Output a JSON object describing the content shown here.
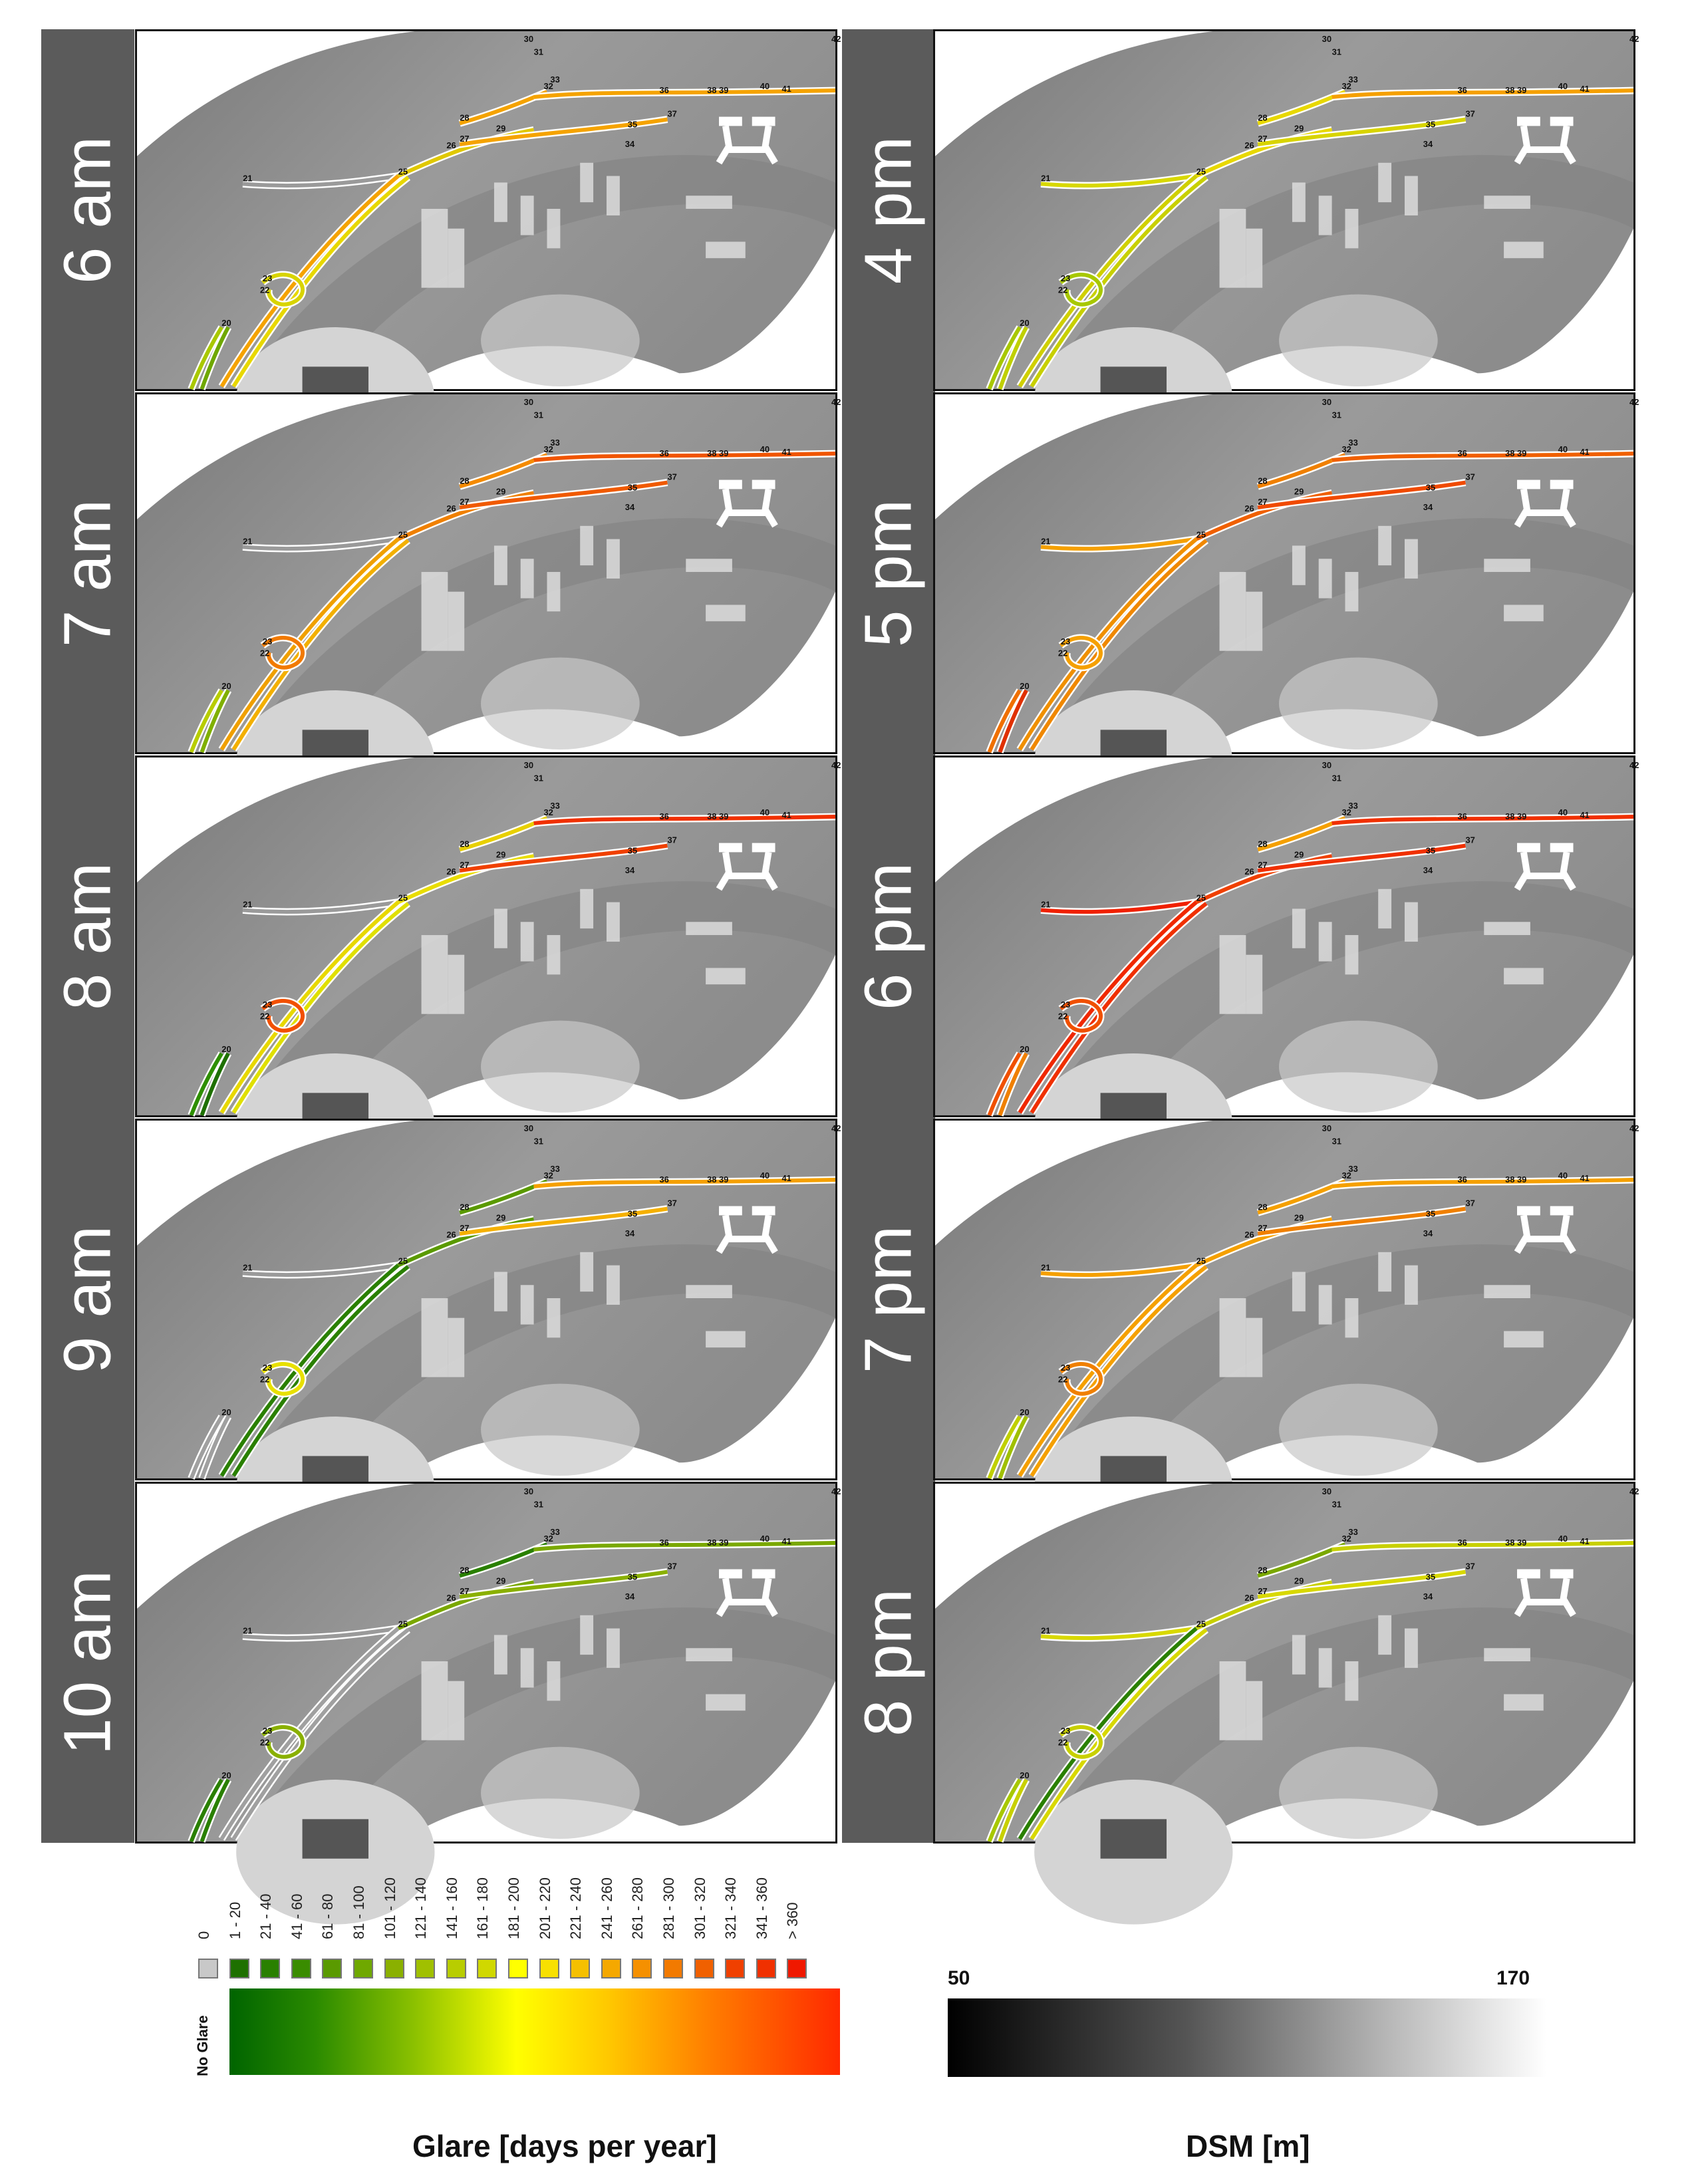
{
  "panels": [
    {
      "time": "6 am",
      "colors": {
        "a": "#9a9a9a",
        "b": "#f5a300",
        "c": "#f5a300",
        "d": "#e0c800",
        "e": "#f5a300",
        "f": "#f5a300",
        "g": "#e8d800",
        "h": "#a9c800",
        "i": "#6fa800",
        "loop": "#d8d400"
      }
    },
    {
      "time": "7 am",
      "colors": {
        "a": "#9a9a9a",
        "b": "#f58b00",
        "c": "#f05500",
        "d": "#f08000",
        "e": "#f05a00",
        "f": "#f0a000",
        "g": "#f3b000",
        "h": "#b8cd00",
        "i": "#80b000",
        "loop": "#f27a00"
      }
    },
    {
      "time": "8 am",
      "colors": {
        "a": "#9a9a9a",
        "b": "#e8d000",
        "c": "#f03000",
        "d": "#e9dd00",
        "e": "#f04000",
        "f": "#e8d800",
        "g": "#e0e000",
        "h": "#2e8f00",
        "i": "#1e7000",
        "loop": "#f25000"
      }
    },
    {
      "time": "9 am",
      "colors": {
        "a": "#9a9a9a",
        "b": "#5a9a00",
        "c": "#f5a000",
        "d": "#5a9a00",
        "e": "#f5b000",
        "f": "#2a8000",
        "g": "#2a8000",
        "h": "#a0a0a0",
        "i": "#a0a0a0",
        "loop": "#e8e000"
      }
    },
    {
      "time": "10 am",
      "colors": {
        "a": "#9a9a9a",
        "b": "#2a8000",
        "c": "#7aa800",
        "d": "#7aa800",
        "e": "#8ab000",
        "f": "#a0a0a0",
        "g": "#a0a0a0",
        "h": "#2a8000",
        "i": "#2a8000",
        "loop": "#8ab000"
      }
    },
    {
      "time": "4 pm",
      "colors": {
        "a": "#d8d800",
        "b": "#e8d800",
        "c": "#f5a000",
        "d": "#e8d800",
        "e": "#d8d400",
        "f": "#d0d000",
        "g": "#c8d000",
        "h": "#a8c800",
        "i": "#c0d000",
        "loop": "#a8c800"
      }
    },
    {
      "time": "5 pm",
      "colors": {
        "a": "#f5a000",
        "b": "#f08000",
        "c": "#f06000",
        "d": "#f06000",
        "e": "#f04a00",
        "f": "#f09000",
        "g": "#f08800",
        "h": "#f07000",
        "i": "#e03000",
        "loop": "#f5a000"
      }
    },
    {
      "time": "6 pm",
      "colors": {
        "a": "#f02000",
        "b": "#f5a000",
        "c": "#f03000",
        "d": "#f04000",
        "e": "#f03000",
        "f": "#f02800",
        "g": "#f03000",
        "h": "#f05000",
        "i": "#f08000",
        "loop": "#f05000"
      }
    },
    {
      "time": "7 pm",
      "colors": {
        "a": "#f5a000",
        "b": "#f5a000",
        "c": "#f5a000",
        "d": "#f5a000",
        "e": "#f08000",
        "f": "#f5a000",
        "g": "#f5a000",
        "h": "#c0d000",
        "i": "#a0c000",
        "loop": "#f08000"
      }
    },
    {
      "time": "8 pm",
      "colors": {
        "a": "#d8d800",
        "b": "#7aa800",
        "c": "#c8d000",
        "d": "#c8d000",
        "e": "#d8d800",
        "f": "#2a8000",
        "g": "#d8d800",
        "h": "#a8c800",
        "i": "#c8d000",
        "loop": "#c8d000"
      }
    }
  ],
  "node_labels": [
    "20",
    "21",
    "22",
    "23",
    "25",
    "26",
    "27",
    "28",
    "29",
    "30",
    "31",
    "32",
    "33",
    "34",
    "35",
    "36",
    "37",
    "38",
    "39",
    "40",
    "41",
    "42"
  ],
  "legend": {
    "ticks": [
      "0",
      "1 - 20",
      "21 - 40",
      "41 - 60",
      "61 - 80",
      "81 - 100",
      "101 - 120",
      "121 - 140",
      "141 - 160",
      "161 - 180",
      "181 - 200",
      "201 - 220",
      "221 - 240",
      "241 - 260",
      "261 - 280",
      "281 - 300",
      "301 - 320",
      "321 - 340",
      "341 - 360",
      "> 360"
    ],
    "swatch_colors": [
      "#c8c8c8",
      "#1e7000",
      "#2a8000",
      "#3a8c00",
      "#5a9a00",
      "#6fa800",
      "#8ab000",
      "#a0c000",
      "#b8cd00",
      "#d0d800",
      "#ffff00",
      "#f8e000",
      "#f5c000",
      "#f5a800",
      "#f59000",
      "#f27a00",
      "#f06000",
      "#f04000",
      "#f03000",
      "#f01800"
    ],
    "no_glare_label": "No Glare",
    "glare_caption": "Glare [days per year]",
    "dsm_caption": "DSM [m]",
    "dsm_min": "50",
    "dsm_max": "170"
  }
}
